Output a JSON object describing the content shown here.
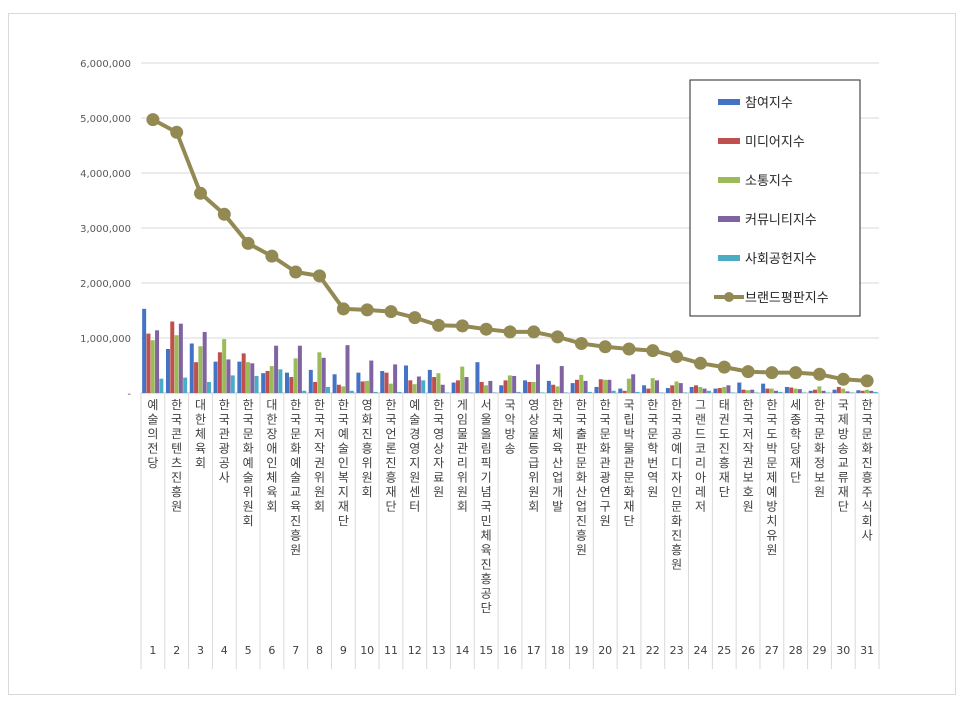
{
  "chart_data": {
    "type": "bar",
    "title": "",
    "xlabel": "",
    "ylabel": "",
    "ylim": [
      0,
      6000000
    ],
    "yticks": [
      0,
      1000000,
      2000000,
      3000000,
      4000000,
      5000000,
      6000000
    ],
    "ytick_labels": [
      "-",
      "1,000,000",
      "2,000,000",
      "3,000,000",
      "4,000,000",
      "5,000,000",
      "6,000,000"
    ],
    "grid": true,
    "legend_position": "top-right",
    "numbers": [
      "1",
      "2",
      "3",
      "4",
      "5",
      "6",
      "7",
      "8",
      "9",
      "10",
      "11",
      "12",
      "13",
      "14",
      "15",
      "16",
      "17",
      "18",
      "19",
      "20",
      "21",
      "22",
      "23",
      "24",
      "25",
      "26",
      "27",
      "28",
      "29",
      "30",
      "31"
    ],
    "categories": [
      "예술의전당",
      "한국콘텐츠진흥원",
      "대한체육회",
      "한국관광공사",
      "한국문화예술위원회",
      "대한장애인체육회",
      "한국문화예술교육진흥원",
      "한국저작권위원회",
      "한국예술인복지재단",
      "영화진흥위원회",
      "한국언론진흥재단",
      "예술경영지원센터",
      "한국영상자료원",
      "게임물관리위원회",
      "서울올림픽기념국민체육진흥공단",
      "국악방송",
      "영상물등급위원회",
      "한국체육산업개발",
      "한국출판문화산업진흥원",
      "한국문화관광연구원",
      "국립박물관문화재단",
      "한국문학번역원",
      "한국공예디자인문화진흥원",
      "그랜드코리아레저",
      "태권도진흥재단",
      "한국저작권보호원",
      "한국도박문제예방치유원",
      "세종학당재단",
      "한국문화정보원",
      "국제방송교류재단",
      "한국문화진흥주식회사"
    ],
    "series": [
      {
        "name": "참여지수",
        "type": "bar",
        "color": "#4472c4",
        "values": [
          1530000,
          800000,
          900000,
          570000,
          570000,
          360000,
          370000,
          420000,
          340000,
          370000,
          400000,
          500000,
          420000,
          190000,
          560000,
          140000,
          230000,
          220000,
          180000,
          110000,
          80000,
          140000,
          90000,
          110000,
          80000,
          190000,
          170000,
          110000,
          40000,
          60000,
          50000
        ]
      },
      {
        "name": "미디어지수",
        "type": "bar",
        "color": "#c0504d",
        "values": [
          1080000,
          1300000,
          560000,
          740000,
          720000,
          400000,
          290000,
          200000,
          150000,
          210000,
          370000,
          230000,
          290000,
          230000,
          200000,
          230000,
          200000,
          150000,
          240000,
          250000,
          40000,
          80000,
          140000,
          140000,
          90000,
          60000,
          80000,
          100000,
          60000,
          110000,
          40000
        ]
      },
      {
        "name": "소통지수",
        "type": "bar",
        "color": "#9bbb59",
        "values": [
          960000,
          1050000,
          850000,
          980000,
          560000,
          490000,
          630000,
          740000,
          120000,
          220000,
          170000,
          160000,
          360000,
          480000,
          140000,
          320000,
          200000,
          120000,
          330000,
          240000,
          260000,
          270000,
          210000,
          110000,
          110000,
          50000,
          80000,
          80000,
          120000,
          80000,
          60000
        ]
      },
      {
        "name": "커뮤니티지수",
        "type": "bar",
        "color": "#8064a2",
        "values": [
          1140000,
          1260000,
          1110000,
          610000,
          540000,
          860000,
          860000,
          640000,
          870000,
          590000,
          520000,
          300000,
          150000,
          290000,
          220000,
          310000,
          520000,
          490000,
          220000,
          240000,
          340000,
          230000,
          180000,
          80000,
          140000,
          60000,
          40000,
          70000,
          40000,
          30000,
          40000
        ]
      },
      {
        "name": "사회공헌지수",
        "type": "bar",
        "color": "#4bacc6",
        "values": [
          260000,
          280000,
          200000,
          320000,
          310000,
          430000,
          40000,
          110000,
          40000,
          20000,
          20000,
          230000,
          10000,
          10000,
          10000,
          20000,
          10000,
          10000,
          20000,
          40000,
          20000,
          10000,
          10000,
          40000,
          10000,
          10000,
          20000,
          10000,
          10000,
          10000,
          20000
        ]
      },
      {
        "name": "브랜드평판지수",
        "type": "line",
        "color": "#938953",
        "values": [
          4970000,
          4740000,
          3630000,
          3250000,
          2720000,
          2490000,
          2200000,
          2130000,
          1530000,
          1510000,
          1480000,
          1370000,
          1230000,
          1220000,
          1160000,
          1110000,
          1110000,
          1020000,
          900000,
          840000,
          800000,
          770000,
          660000,
          540000,
          470000,
          390000,
          370000,
          370000,
          340000,
          250000,
          220000
        ]
      }
    ]
  }
}
